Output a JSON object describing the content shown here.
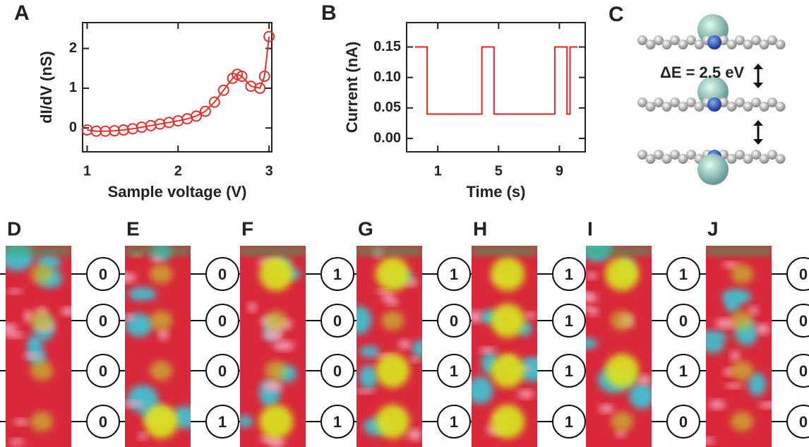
{
  "chart_data": [
    {
      "type": "line",
      "panel_label": "A",
      "x_label": "Sample voltage (V)",
      "y_label": "dI/dV (nS)",
      "x": [
        1.0,
        1.1,
        1.2,
        1.3,
        1.4,
        1.5,
        1.6,
        1.7,
        1.8,
        1.9,
        2.0,
        2.1,
        2.2,
        2.3,
        2.4,
        2.5,
        2.6,
        2.65,
        2.7,
        2.8,
        2.9,
        2.95,
        3.0
      ],
      "series": [
        {
          "color": "#e8302a",
          "values": [
            -0.05,
            -0.08,
            -0.08,
            -0.07,
            -0.05,
            -0.02,
            0.02,
            0.06,
            0.1,
            0.14,
            0.18,
            0.23,
            0.3,
            0.42,
            0.65,
            0.95,
            1.25,
            1.35,
            1.3,
            1.05,
            1.0,
            1.3,
            2.3
          ]
        }
      ],
      "markers": true,
      "xlim": [
        0.95,
        3.03
      ],
      "ylim": [
        -0.6,
        2.65
      ],
      "xticks": [
        1,
        2,
        3
      ],
      "yticks": [
        0,
        1,
        2
      ]
    },
    {
      "type": "line",
      "panel_label": "B",
      "x_label": "Time (s)",
      "y_label": "Current (nA)",
      "x": [
        -0.5,
        0.3,
        0.3,
        3.9,
        3.9,
        4.7,
        4.7,
        8.7,
        8.7,
        9.5,
        9.5,
        9.7,
        9.7,
        10.2
      ],
      "series": [
        {
          "color": "#ee2222",
          "values": [
            0.15,
            0.15,
            0.04,
            0.04,
            0.15,
            0.15,
            0.04,
            0.04,
            0.15,
            0.15,
            0.04,
            0.04,
            0.15,
            0.15
          ]
        }
      ],
      "markers": false,
      "xlim": [
        -1.05,
        10.7
      ],
      "ylim": [
        -0.022,
        0.19
      ],
      "xticks": [
        1,
        5,
        9
      ],
      "yticks": [
        {
          "value": 0,
          "label": "0.00"
        },
        {
          "value": 0.05,
          "label": "0.05"
        },
        {
          "value": 0.1,
          "label": "0.10"
        },
        {
          "value": 0.15,
          "label": "0.15"
        }
      ]
    }
  ],
  "diagram": {
    "panel_label": "C",
    "energy_label": "ΔE = 2.5 eV"
  },
  "panels": [
    {
      "label": "D",
      "bits": [
        "0",
        "0",
        "0",
        "0"
      ]
    },
    {
      "label": "E",
      "bits": [
        "0",
        "0",
        "0",
        "1"
      ]
    },
    {
      "label": "F",
      "bits": [
        "1",
        "0",
        "0",
        "1"
      ]
    },
    {
      "label": "G",
      "bits": [
        "1",
        "0",
        "1",
        "1"
      ]
    },
    {
      "label": "H",
      "bits": [
        "1",
        "1",
        "1",
        "1"
      ]
    },
    {
      "label": "I",
      "bits": [
        "1",
        "0",
        "1",
        "0"
      ]
    },
    {
      "label": "J",
      "bits": [
        "0",
        "0",
        "0",
        "0"
      ]
    }
  ]
}
